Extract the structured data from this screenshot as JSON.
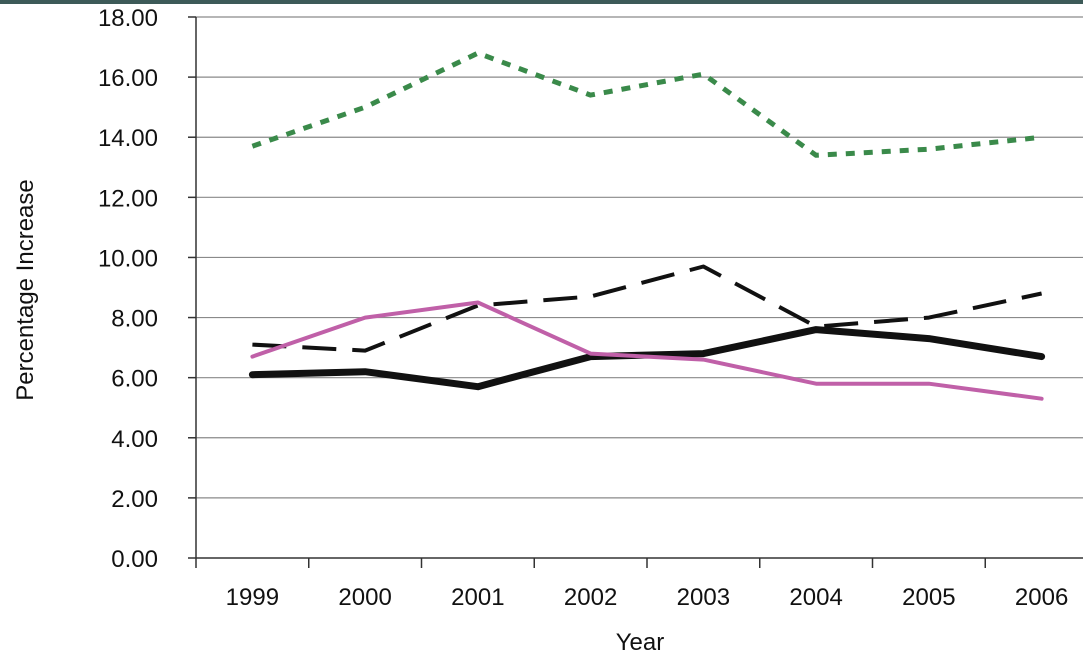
{
  "chart_data": {
    "type": "line",
    "title": "",
    "xlabel": "Year",
    "ylabel": "Percentage Increase",
    "categories": [
      "1999",
      "2000",
      "2001",
      "2002",
      "2003",
      "2004",
      "2005",
      "2006"
    ],
    "y_ticks": [
      "0.00",
      "2.00",
      "4.00",
      "6.00",
      "8.00",
      "10.00",
      "12.00",
      "14.00",
      "16.00",
      "18.00"
    ],
    "ylim": [
      0,
      18
    ],
    "grid": true,
    "legend": "none",
    "series": [
      {
        "values": [
          13.7,
          15.0,
          16.8,
          15.4,
          16.1,
          13.4,
          13.6,
          14.0
        ],
        "color": "#3a8a4a",
        "style": "dotted"
      },
      {
        "values": [
          7.1,
          6.9,
          8.4,
          8.7,
          9.7,
          7.7,
          8.0,
          8.8
        ],
        "color": "#111111",
        "style": "dashed"
      },
      {
        "values": [
          6.1,
          6.2,
          5.7,
          6.7,
          6.8,
          7.6,
          7.3,
          6.7
        ],
        "color": "#111111",
        "style": "solid-thick"
      },
      {
        "values": [
          6.7,
          8.0,
          8.5,
          6.8,
          6.6,
          5.8,
          5.8,
          5.3
        ],
        "color": "#c060a8",
        "style": "solid"
      }
    ]
  }
}
